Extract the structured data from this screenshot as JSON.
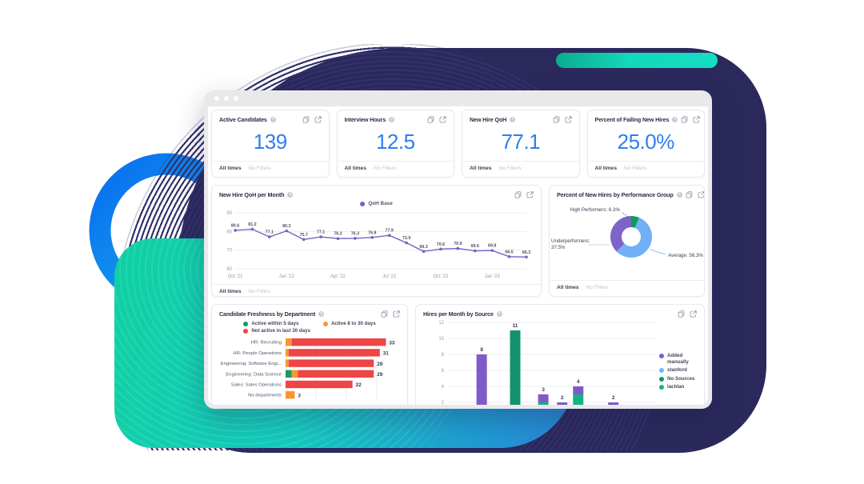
{
  "decor": {
    "navy": "#2b295c",
    "teal_panel_gradient": [
      "#0fd0a4",
      "#13cbbe",
      "#1f9fd2",
      "#2a84d8"
    ],
    "pill_gradient": [
      "#0cab8d",
      "#15dec2"
    ],
    "blue_ring_gradient": [
      "#0a6cf0",
      "#14b4ea"
    ]
  },
  "window": {
    "titlebar_dots": 3
  },
  "icons": {
    "info_glyph": "?"
  },
  "footer_defaults": {
    "period": "All times",
    "filters": "No Filters"
  },
  "kpi_cards": [
    {
      "title": "Active Candidates",
      "value": "139",
      "period": "All times",
      "filters": "No Filters"
    },
    {
      "title": "Interview Hours",
      "value": "12.5",
      "period": "All times",
      "filters": "No Filters"
    },
    {
      "title": "New Hire QoH",
      "value": "77.1",
      "period": "All times",
      "filters": "No Filters"
    },
    {
      "title": "Percent of Failing New Hires",
      "value": "25.0%",
      "period": "All times",
      "filters": "No Filters"
    }
  ],
  "qoh_card": {
    "title": "New Hire QoH per Month",
    "period": "All times",
    "filters": "No Filters"
  },
  "perf_card": {
    "title": "Percent of New Hires by Performance Group",
    "period": "All times",
    "filters": "No Filters"
  },
  "freshness_card": {
    "title": "Candidate Freshness by Department"
  },
  "hires_card": {
    "title": "Hires per Month by Source"
  },
  "chart_data": [
    {
      "id": "qoh_line",
      "type": "line",
      "title": "New Hire QoH per Month",
      "legend": [
        {
          "label": "QoH Base",
          "color": "#7164c4"
        }
      ],
      "x": [
        "Oct '21",
        "Nov '21",
        "Dec '21",
        "Jan '22",
        "Feb '22",
        "Mar '22",
        "Apr '22",
        "May '22",
        "Jun '22",
        "Jul '22",
        "Aug '22",
        "Sep '22",
        "Oct '22",
        "Nov '22",
        "Dec '22",
        "Jan '23",
        "Feb '23",
        "Mar '23"
      ],
      "x_tick_every": 3,
      "x_tick_labels": [
        "Oct '21",
        "Jan '22",
        "Apr '22",
        "Jul '22",
        "Oct '22",
        "Jan '23"
      ],
      "values": [
        80.6,
        81.2,
        77.1,
        80.3,
        75.7,
        77.1,
        76.2,
        76.3,
        76.8,
        77.9,
        73.9,
        69.3,
        70.6,
        70.9,
        69.6,
        69.8,
        66.5,
        66.3
      ],
      "ylim": [
        60,
        90
      ],
      "yticks": [
        60,
        70,
        80,
        90
      ],
      "grid": true
    },
    {
      "id": "perf_donut",
      "type": "pie",
      "donut": true,
      "title": "Percent of New Hires by Performance Group",
      "slices": [
        {
          "label": "High Performers",
          "value": 6.3,
          "color": "#0a9d5c"
        },
        {
          "label": "Average",
          "value": 56.3,
          "color": "#6fb0f7"
        },
        {
          "label": "Underperformers",
          "value": 37.5,
          "color": "#7d64c8"
        }
      ]
    },
    {
      "id": "freshness_hbar",
      "type": "bar",
      "orientation": "horizontal",
      "stacked": true,
      "title": "Candidate Freshness by Department",
      "legend": [
        {
          "label": "Active within 5 days",
          "color": "#169a67"
        },
        {
          "label": "Active 8 to 30 days",
          "color": "#f8972c"
        },
        {
          "label": "Not active in last 30 days",
          "color": "#ee4545"
        }
      ],
      "categories": [
        "HR: Recruiting",
        "HR: People Operations",
        "Engineering: Software Engi...",
        "Engineering: Data Science",
        "Sales: Sales Operations",
        "No departments"
      ],
      "series": [
        {
          "name": "Active within 5 days",
          "color": "#169a67",
          "values": [
            0,
            0,
            0,
            2,
            0,
            0
          ]
        },
        {
          "name": "Active 8 to 30 days",
          "color": "#f8972c",
          "values": [
            2,
            1,
            1,
            2,
            0,
            3
          ]
        },
        {
          "name": "Not active in last 30 days",
          "color": "#ee4545",
          "values": [
            31,
            30,
            28,
            25,
            22,
            0
          ]
        }
      ],
      "totals": [
        33,
        31,
        29,
        29,
        22,
        3
      ],
      "xlim": [
        0,
        36
      ],
      "gridstep": 10
    },
    {
      "id": "hires_vbar",
      "type": "bar",
      "orientation": "vertical",
      "stacked": true,
      "title": "Hires per Month by Source",
      "legend": [
        {
          "label": "Added manually",
          "color": "#7e5bc8"
        },
        {
          "label": "stanford",
          "color": "#6ab8f7"
        },
        {
          "label": "No Sources",
          "color": "#12926e"
        },
        {
          "label": "lachlan",
          "color": "#16b183"
        }
      ],
      "ylim": [
        0,
        12
      ],
      "yticks": [
        2,
        4,
        6,
        8,
        10,
        12
      ],
      "bars": [
        {
          "x_frac": 0.03,
          "label": "",
          "segments": [
            {
              "source": "Added manually",
              "value": 1.6
            }
          ]
        },
        {
          "x_frac": 0.162,
          "label": "8",
          "segments": [
            {
              "source": "Added manually",
              "value": 8
            }
          ]
        },
        {
          "x_frac": 0.323,
          "label": "11",
          "segments": [
            {
              "source": "No Sources",
              "value": 11
            }
          ]
        },
        {
          "x_frac": 0.458,
          "label": "3",
          "segments": [
            {
              "source": "lachlan",
              "value": 2
            },
            {
              "source": "Added manually",
              "value": 1
            }
          ]
        },
        {
          "x_frac": 0.549,
          "label": "2",
          "segments": [
            {
              "source": "Added manually",
              "value": 2
            }
          ]
        },
        {
          "x_frac": 0.626,
          "label": "4",
          "segments": [
            {
              "source": "lachlan",
              "value": 3
            },
            {
              "source": "Added manually",
              "value": 1
            }
          ]
        },
        {
          "x_frac": 0.704,
          "label": "",
          "segments": [
            {
              "source": "lachlan",
              "value": 1.6
            }
          ]
        },
        {
          "x_frac": 0.737,
          "label": "",
          "segments": [
            {
              "source": "Added manually",
              "value": 1.6
            }
          ]
        },
        {
          "x_frac": 0.795,
          "label": "2",
          "segments": [
            {
              "source": "Added manually",
              "value": 2
            }
          ]
        }
      ]
    }
  ]
}
